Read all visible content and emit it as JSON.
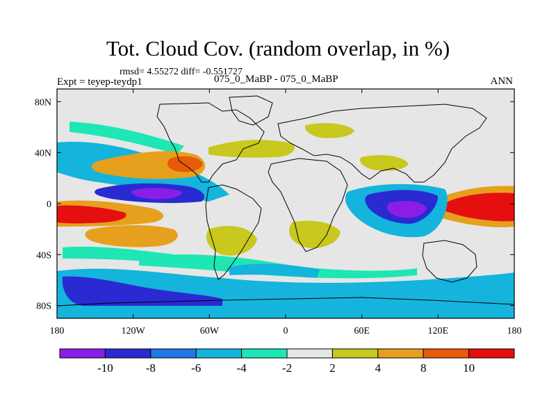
{
  "chart_data": {
    "type": "heatmap",
    "title": "Tot. Cloud Cov. (random overlap, in %)",
    "stats": "rmsd= 4.55272 diff= -0.551727",
    "expt": "Expt = teyep-teydp1",
    "cases": "075_0_MaBP - 075_0_MaBP",
    "season": "ANN",
    "xlim": [
      -180,
      180
    ],
    "ylim": [
      -90,
      90
    ],
    "xticks": [
      {
        "value": -180,
        "label": "180"
      },
      {
        "value": -120,
        "label": "120W"
      },
      {
        "value": -60,
        "label": "60W"
      },
      {
        "value": 0,
        "label": "0"
      },
      {
        "value": 60,
        "label": "60E"
      },
      {
        "value": 120,
        "label": "120E"
      },
      {
        "value": 180,
        "label": "180"
      }
    ],
    "yticks": [
      {
        "value": 80,
        "label": "80N"
      },
      {
        "value": 40,
        "label": "40N"
      },
      {
        "value": 0,
        "label": "0"
      },
      {
        "value": -40,
        "label": "40S"
      },
      {
        "value": -80,
        "label": "80S"
      }
    ],
    "colorbar": {
      "colors": [
        "#8a1ee6",
        "#2a2ad2",
        "#1e78e6",
        "#14b4dc",
        "#1ee6b4",
        "#e6e6e6",
        "#c8c81e",
        "#e6a01e",
        "#e65a0a",
        "#e60f0f"
      ],
      "tick_labels": [
        "-10",
        "-8",
        "-6",
        "-4",
        "-2",
        "2",
        "4",
        "8",
        "10"
      ]
    },
    "anomaly_fields": [
      {
        "label": "N Pacific positive",
        "lon": -95,
        "lat": 33,
        "value": 7
      },
      {
        "label": "Eq E Pacific positive",
        "lon": -160,
        "lat": -5,
        "value": 11
      },
      {
        "label": "Eq W Pacific positive",
        "lon": 165,
        "lat": 1,
        "value": 11
      },
      {
        "label": "S Pacific positive",
        "lon": -110,
        "lat": -22,
        "value": 6
      },
      {
        "label": "E Pacific ITCZ negative",
        "lon": -100,
        "lat": 8,
        "value": -11
      },
      {
        "label": "Indian Ocean negative",
        "lon": 95,
        "lat": -6,
        "value": -11
      },
      {
        "label": "Pacific subtropics negative",
        "lon": -160,
        "lat": 15,
        "value": -6
      },
      {
        "label": "Southern Ocean negative",
        "lon": -140,
        "lat": -70,
        "value": -8
      },
      {
        "label": "Africa positive",
        "lon": 30,
        "lat": -20,
        "value": 3
      }
    ]
  }
}
